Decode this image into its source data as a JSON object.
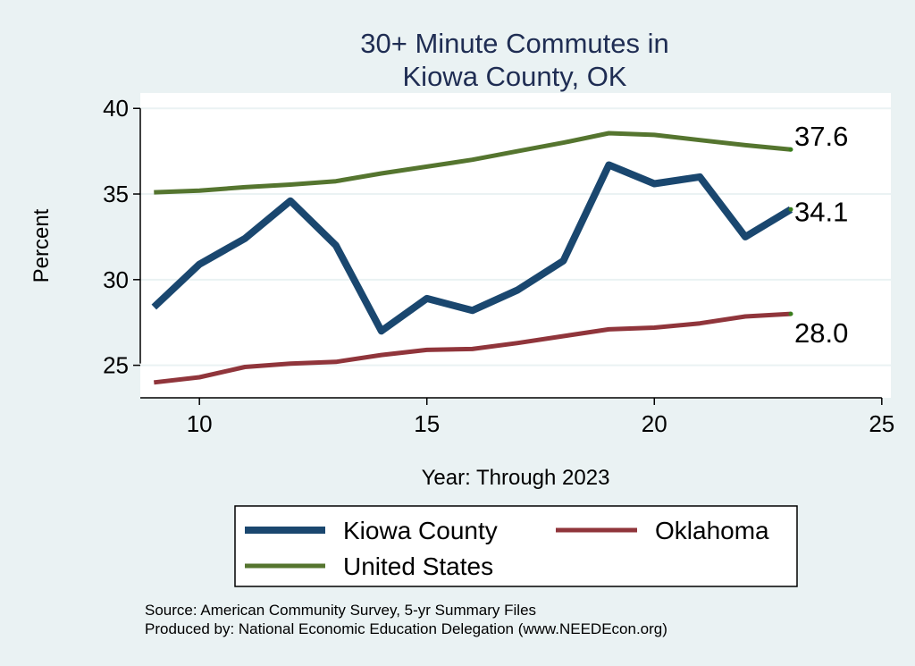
{
  "chart_data": {
    "type": "line",
    "title_lines": [
      "30+ Minute Commutes in",
      "Kiowa County, OK"
    ],
    "xlabel": "Year: Through 2023",
    "ylabel": "Percent",
    "xlim": [
      8.7,
      25.2
    ],
    "ylim": [
      23.1,
      40.9
    ],
    "xticks": [
      10,
      15,
      20,
      25
    ],
    "yticks": [
      25,
      30,
      35,
      40
    ],
    "grid": true,
    "legend_position": "bottom",
    "x": [
      9,
      10,
      11,
      12,
      13,
      14,
      15,
      16,
      17,
      18,
      19,
      20,
      21,
      22,
      23
    ],
    "series": [
      {
        "name": "Kiowa County",
        "color": "#1a476f",
        "width": 8,
        "values": [
          28.4,
          30.9,
          32.4,
          34.6,
          32.0,
          27.0,
          28.9,
          28.2,
          29.4,
          31.1,
          36.7,
          35.6,
          36.0,
          32.5,
          34.1
        ]
      },
      {
        "name": "Oklahoma",
        "color": "#90353b",
        "width": 5,
        "values": [
          24.0,
          24.3,
          24.9,
          25.1,
          25.2,
          25.6,
          25.9,
          25.95,
          26.3,
          26.7,
          27.1,
          27.2,
          27.45,
          27.85,
          28.0
        ]
      },
      {
        "name": "United States",
        "color": "#55752f",
        "width": 5,
        "values": [
          35.1,
          35.2,
          35.4,
          35.55,
          35.75,
          36.2,
          36.6,
          37.0,
          37.5,
          38.0,
          38.55,
          38.45,
          38.15,
          37.85,
          37.6
        ]
      }
    ],
    "end_labels": [
      {
        "series": "United States",
        "text": "37.6"
      },
      {
        "series": "Kiowa County",
        "text": "34.1"
      },
      {
        "series": "Oklahoma",
        "text": "28.0"
      }
    ],
    "notes": [
      "Source: American Community Survey, 5-yr Summary Files",
      "Produced by: National Economic Education Delegation (www.NEEDEcon.org)"
    ]
  }
}
